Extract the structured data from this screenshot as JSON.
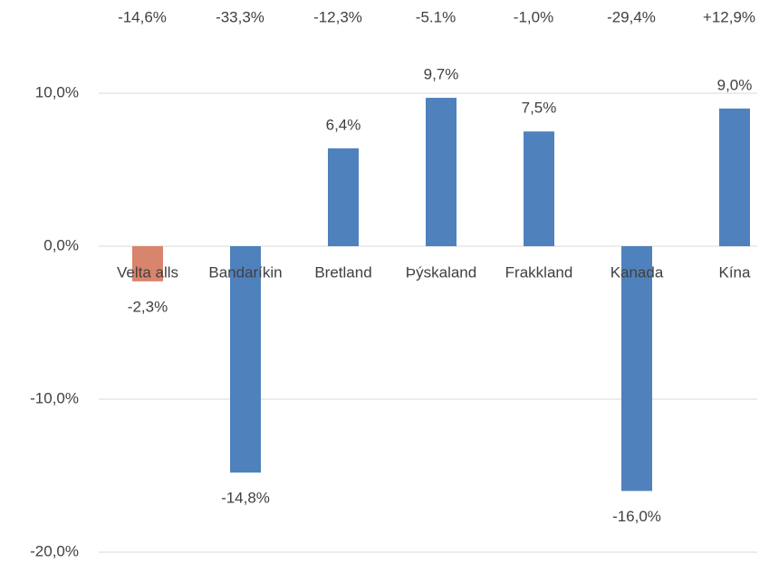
{
  "chart_data": {
    "type": "bar",
    "annotations": [
      "-14,6%",
      "-33,3%",
      "-12,3%",
      "-5.1%",
      "-1,0%",
      "-29,4%",
      "+12,9%"
    ],
    "categories": [
      "Velta alls",
      "Bandaríkin",
      "Bretland",
      "Þýskaland",
      "Frakkland",
      "Kanada",
      "Kína"
    ],
    "values": [
      -2.3,
      -14.8,
      6.4,
      9.7,
      7.5,
      -16.0,
      9.0
    ],
    "value_labels": [
      "-2,3%",
      "-14,8%",
      "6,4%",
      "9,7%",
      "7,5%",
      "-16,0%",
      "9,0%"
    ],
    "colors": [
      "#d9846d",
      "#4f81bd",
      "#4f81bd",
      "#4f81bd",
      "#4f81bd",
      "#4f81bd",
      "#4f81bd"
    ],
    "ylim": [
      -20,
      10
    ],
    "yticks": [
      {
        "value": -20,
        "label": "-20,0%"
      },
      {
        "value": -10,
        "label": "-10,0%"
      },
      {
        "value": 0,
        "label": "0,0%"
      },
      {
        "value": 10,
        "label": "10,0%"
      }
    ],
    "grid": true
  }
}
